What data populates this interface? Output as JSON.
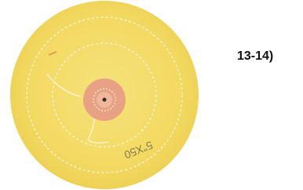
{
  "label": "13-14)",
  "wheel_marking": "5\"X50"
}
